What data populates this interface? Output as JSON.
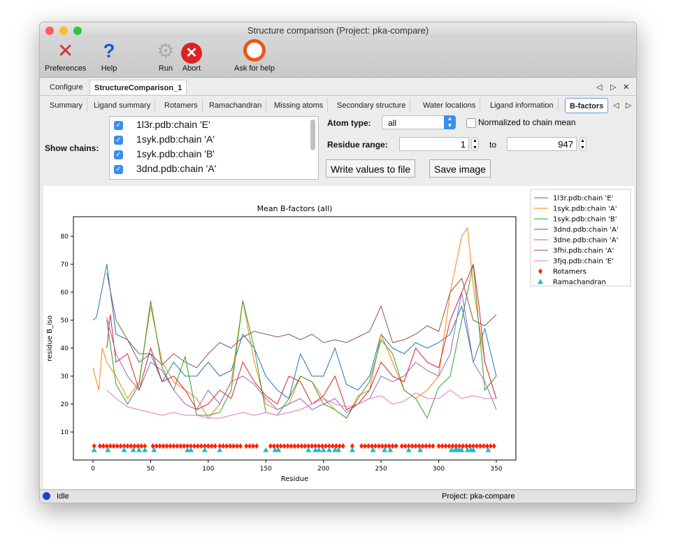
{
  "window": {
    "title": "Structure comparison (Project: pka-compare)"
  },
  "toolbar": [
    {
      "label": "Preferences",
      "icon": "tools-icon"
    },
    {
      "label": "Help",
      "icon": "question-icon"
    },
    {
      "label": "Run",
      "icon": "gear-icon"
    },
    {
      "label": "Abort",
      "icon": "stop-icon"
    },
    {
      "label": "Ask for help",
      "icon": "lifebuoy-icon"
    }
  ],
  "top_tabs": [
    "Configure",
    "StructureComparison_1"
  ],
  "sub_tabs": [
    "Summary",
    "Ligand summary",
    "Rotamers",
    "Ramachandran",
    "Missing atoms",
    "Secondary structure",
    "Water locations",
    "Ligand information",
    "B-factors"
  ],
  "controls": {
    "show_chains_label": "Show chains:",
    "chains": [
      {
        "label": "1l3r.pdb:chain 'E'",
        "checked": true
      },
      {
        "label": "1syk.pdb:chain 'A'",
        "checked": true
      },
      {
        "label": "1syk.pdb:chain 'B'",
        "checked": true
      },
      {
        "label": "3dnd.pdb:chain 'A'",
        "checked": true
      }
    ],
    "atom_type_label": "Atom type:",
    "atom_type": "all",
    "normalized_label": "Normalized to chain mean",
    "normalized": false,
    "residue_range_label": "Residue range:",
    "range_from": "1",
    "to_label": "to",
    "range_to": "947",
    "write_button": "Write values to file",
    "save_button": "Save image"
  },
  "status": {
    "text": "Idle",
    "project": "Project: pka-compare"
  },
  "chart_data": {
    "type": "line",
    "title": "Mean B-factors (all)",
    "xlabel": "Residue",
    "ylabel": "residue B_iso",
    "xlim": [
      -17,
      367
    ],
    "ylim": [
      0,
      87
    ],
    "xticks": [
      0,
      50,
      100,
      150,
      200,
      250,
      300,
      350
    ],
    "yticks": [
      10,
      20,
      30,
      40,
      50,
      60,
      70,
      80
    ],
    "legend_position": "outside-right",
    "series": [
      {
        "name": "1l3r.pdb:chain 'E'",
        "color": "#1f77b4",
        "x": [
          0,
          3,
          12,
          20,
          30,
          40,
          50,
          60,
          70,
          80,
          90,
          100,
          110,
          120,
          130,
          140,
          150,
          160,
          170,
          180,
          190,
          200,
          210,
          220,
          230,
          240,
          250,
          260,
          270,
          280,
          290,
          300,
          310,
          320,
          330,
          340,
          350
        ],
        "y": [
          50,
          51,
          70,
          45,
          43,
          38,
          38,
          28,
          35,
          30,
          30,
          35,
          30,
          32,
          45,
          40,
          30,
          25,
          22,
          38,
          30,
          30,
          40,
          27,
          25,
          30,
          45,
          40,
          38,
          42,
          40,
          42,
          45,
          55,
          35,
          47,
          30
        ]
      },
      {
        "name": "1syk.pdb:chain 'A'",
        "color": "#ff7f0e",
        "x": [
          0,
          5,
          8,
          12,
          20,
          30,
          40,
          50,
          60,
          70,
          80,
          90,
          100,
          110,
          120,
          130,
          140,
          150,
          160,
          170,
          180,
          190,
          200,
          210,
          220,
          230,
          240,
          250,
          260,
          270,
          280,
          290,
          300,
          310,
          320,
          325,
          330,
          340,
          350
        ],
        "y": [
          33,
          25,
          40,
          35,
          30,
          22,
          28,
          55,
          35,
          28,
          25,
          22,
          15,
          20,
          28,
          57,
          35,
          20,
          18,
          20,
          30,
          28,
          22,
          18,
          15,
          23,
          25,
          45,
          35,
          25,
          22,
          25,
          30,
          60,
          80,
          83,
          62,
          35,
          22
        ]
      },
      {
        "name": "1syk.pdb:chain 'B'",
        "color": "#2ca02c",
        "x": [
          12,
          20,
          30,
          40,
          50,
          60,
          70,
          80,
          90,
          100,
          110,
          120,
          130,
          140,
          150,
          160,
          170,
          180,
          190,
          200,
          210,
          220,
          230,
          240,
          250,
          260,
          270,
          280,
          290,
          300,
          310,
          320,
          330,
          340,
          350
        ],
        "y": [
          50,
          27,
          20,
          27,
          57,
          33,
          25,
          37,
          16,
          16,
          17,
          25,
          57,
          40,
          17,
          16,
          22,
          30,
          28,
          20,
          18,
          15,
          22,
          28,
          43,
          38,
          25,
          22,
          15,
          26,
          30,
          50,
          70,
          25,
          30
        ]
      },
      {
        "name": "3dnd.pdb:chain 'A'",
        "color": "#d62728",
        "x": [
          12,
          15,
          20,
          30,
          40,
          50,
          60,
          70,
          80,
          90,
          100,
          110,
          120,
          130,
          140,
          150,
          160,
          170,
          180,
          190,
          200,
          210,
          220,
          230,
          240,
          250,
          260,
          270,
          280,
          290,
          300,
          310,
          320,
          330,
          335,
          340,
          350
        ],
        "y": [
          40,
          52,
          35,
          38,
          25,
          40,
          28,
          30,
          25,
          18,
          20,
          25,
          22,
          35,
          28,
          23,
          20,
          30,
          28,
          20,
          23,
          30,
          18,
          20,
          25,
          35,
          30,
          28,
          40,
          35,
          33,
          50,
          60,
          70,
          55,
          35,
          22
        ]
      },
      {
        "name": "3dne.pdb:chain 'A'",
        "color": "#9467bd",
        "x": [
          12,
          20,
          30,
          40,
          50,
          60,
          70,
          80,
          90,
          100,
          110,
          120,
          130,
          140,
          150,
          160,
          170,
          180,
          190,
          200,
          210,
          220,
          230,
          240,
          250,
          260,
          270,
          280,
          290,
          300,
          310,
          320,
          330,
          340,
          350
        ],
        "y": [
          51,
          38,
          30,
          25,
          35,
          32,
          25,
          20,
          18,
          25,
          20,
          28,
          30,
          27,
          22,
          18,
          20,
          22,
          18,
          20,
          22,
          17,
          20,
          22,
          30,
          28,
          30,
          35,
          32,
          30,
          38,
          60,
          35,
          28,
          18
        ]
      },
      {
        "name": "3fhi.pdb:chain 'A'",
        "color": "#8c564b",
        "x": [
          12,
          20,
          30,
          40,
          50,
          60,
          70,
          80,
          90,
          100,
          110,
          120,
          130,
          140,
          150,
          160,
          170,
          180,
          190,
          200,
          210,
          220,
          230,
          240,
          250,
          260,
          270,
          280,
          290,
          300,
          310,
          320,
          330,
          340,
          350
        ],
        "y": [
          67,
          50,
          43,
          35,
          38,
          34,
          38,
          35,
          33,
          38,
          42,
          40,
          44,
          46,
          45,
          44,
          45,
          43,
          45,
          42,
          43,
          42,
          44,
          46,
          55,
          42,
          43,
          45,
          48,
          46,
          60,
          65,
          50,
          48,
          52
        ]
      },
      {
        "name": "3fjq.pdb:chain 'E'",
        "color": "#e377c2",
        "x": [
          12,
          20,
          30,
          40,
          50,
          60,
          70,
          80,
          90,
          100,
          110,
          120,
          130,
          140,
          150,
          160,
          170,
          180,
          190,
          200,
          210,
          220,
          230,
          240,
          250,
          260,
          270,
          280,
          290,
          300,
          310,
          320,
          330,
          340,
          350
        ],
        "y": [
          25,
          22,
          19,
          18,
          17,
          16,
          17,
          16,
          16,
          15,
          15,
          16,
          17,
          16,
          17,
          16,
          17,
          18,
          20,
          22,
          20,
          19,
          20,
          22,
          23,
          20,
          21,
          24,
          22,
          22,
          25,
          22,
          23,
          22,
          22
        ]
      }
    ],
    "markers": [
      {
        "name": "Rotamers",
        "color": "#ff2200",
        "shape": "diamond",
        "y": 5,
        "x": [
          1,
          6,
          9,
          12,
          15,
          18,
          21,
          24,
          27,
          30,
          33,
          36,
          39,
          42,
          45,
          52,
          55,
          58,
          61,
          64,
          67,
          70,
          73,
          76,
          79,
          82,
          85,
          88,
          91,
          94,
          97,
          100,
          103,
          106,
          110,
          113,
          116,
          119,
          122,
          125,
          128,
          133,
          136,
          139,
          142,
          154,
          157,
          160,
          163,
          166,
          169,
          172,
          175,
          178,
          181,
          184,
          187,
          190,
          193,
          196,
          199,
          202,
          205,
          208,
          211,
          214,
          217,
          225,
          233,
          236,
          239,
          242,
          245,
          248,
          251,
          254,
          257,
          260,
          263,
          268,
          271,
          274,
          277,
          280,
          283,
          286,
          289,
          292,
          295,
          300,
          303,
          306,
          309,
          312,
          315,
          318,
          321,
          324,
          327,
          330,
          333,
          336,
          339,
          342,
          345,
          348
        ]
      },
      {
        "name": "Ramachandran",
        "color": "#17becf",
        "shape": "triangle",
        "y": 3.6,
        "x": [
          1,
          13,
          27,
          35,
          40,
          45,
          53,
          82,
          85,
          97,
          110,
          150,
          158,
          161,
          187,
          193,
          196,
          200,
          205,
          210,
          213,
          225,
          243,
          253,
          258,
          274,
          284,
          311,
          314,
          316,
          318,
          320,
          325,
          328,
          330,
          343
        ]
      }
    ]
  }
}
